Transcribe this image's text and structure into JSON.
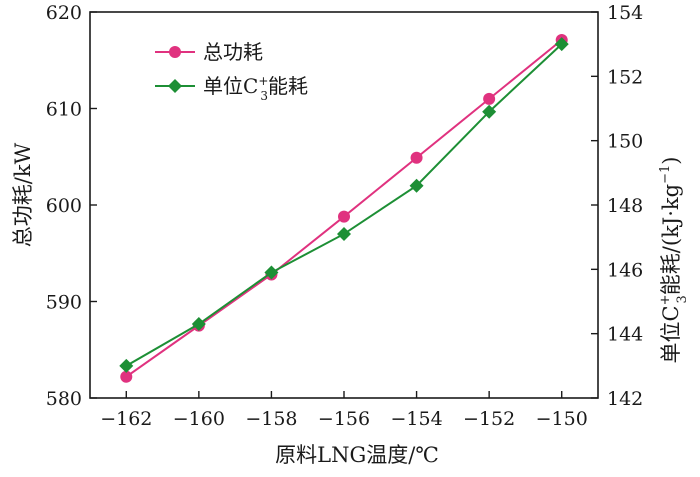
{
  "chart_data": {
    "type": "line",
    "x": [
      -162,
      -160,
      -158,
      -156,
      -154,
      -152,
      -150
    ],
    "xlabel": "原料LNG温度/℃",
    "xlim": [
      -163,
      -149
    ],
    "xticks": [
      -162,
      -160,
      -158,
      -156,
      -154,
      -152,
      -150
    ],
    "xtick_labels": [
      "−162",
      "−160",
      "−158",
      "−156",
      "−154",
      "−152",
      "−150"
    ],
    "y_left": {
      "label": "总功耗/kW",
      "lim": [
        580,
        620
      ],
      "ticks": [
        580,
        590,
        600,
        610,
        620
      ]
    },
    "y_right": {
      "label_parts": {
        "pre": "单位C",
        "sup": "+",
        "sub": "3",
        "post": "能耗/(kJ·kg",
        "sup2": "−1",
        "end": ")"
      },
      "lim": [
        142,
        154
      ],
      "ticks": [
        142,
        144,
        146,
        148,
        150,
        152,
        154
      ]
    },
    "legend_position": "top-left",
    "series": [
      {
        "name": "总功耗",
        "axis": "left",
        "color": "#e0327f",
        "marker": "circle",
        "values": [
          582.2,
          587.5,
          592.8,
          598.8,
          604.9,
          611.0,
          617.1
        ]
      },
      {
        "name": "单位C3+能耗",
        "name_parts": {
          "pre": "单位C",
          "sup": "+",
          "sub": "3",
          "post": "能耗"
        },
        "axis": "right",
        "color": "#1d8f35",
        "marker": "diamond",
        "values": [
          143.0,
          144.3,
          145.9,
          147.1,
          148.6,
          150.9,
          153.0
        ]
      }
    ]
  }
}
